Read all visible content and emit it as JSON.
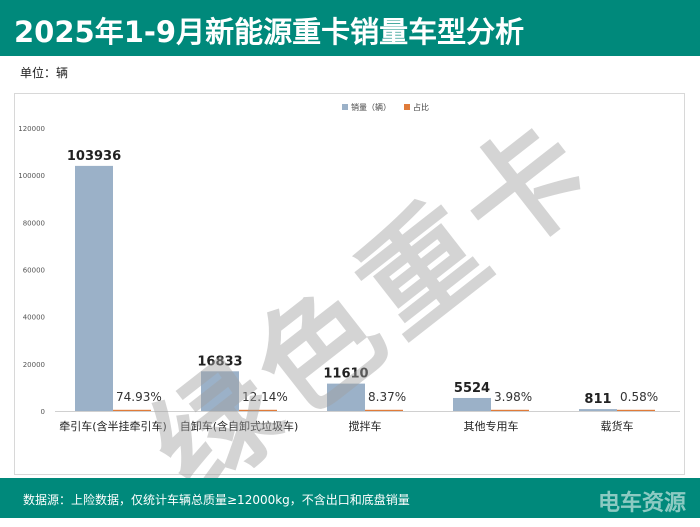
{
  "title": "2025年1-9月新能源重卡销量车型分析",
  "unit": "单位：辆",
  "footer": {
    "source": "数据源：上险数据，仅统计车辆总质量≥12000kg，不含出口和底盘销量",
    "logo": "电车资源"
  },
  "watermark": "绿色重卡",
  "chart_data": {
    "type": "bar",
    "categories": [
      "牵引车(含半挂牵引车)",
      "自卸车(含自卸式垃圾车)",
      "搅拌车",
      "其他专用车",
      "载货车"
    ],
    "series": [
      {
        "name": "销量（辆）",
        "values": [
          103936,
          16833,
          11610,
          5524,
          811
        ],
        "color": "#9bb1c8"
      },
      {
        "name": "占比",
        "values": [
          74.93,
          12.14,
          8.37,
          3.98,
          0.58
        ],
        "labels": [
          "74.93%",
          "12.14%",
          "8.37%",
          "3.98%",
          "0.58%"
        ],
        "color": "#e07b39"
      }
    ],
    "ylim": [
      0,
      120000
    ],
    "yticks": [
      "0",
      "20000",
      "40000",
      "60000",
      "80000",
      "100000",
      "120000"
    ],
    "legend": "top-center",
    "grid": false
  }
}
